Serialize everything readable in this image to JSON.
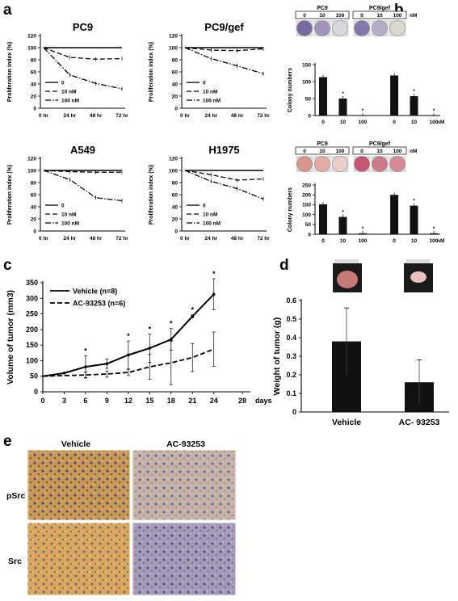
{
  "panel_labels": {
    "a": "a",
    "b": "b",
    "c": "c",
    "d": "d",
    "e": "e"
  },
  "chart_data": [
    {
      "id": "a1",
      "type": "line",
      "title": "PC9",
      "ylabel": "Proliferation index (%)",
      "categories": [
        "0 hr",
        "24 hr",
        "48 hr",
        "72 hr"
      ],
      "ylim": [
        0,
        120
      ],
      "yticks": [
        0,
        20,
        40,
        60,
        80,
        100,
        120
      ],
      "series": [
        {
          "name": "0",
          "values": [
            100,
            100,
            100,
            100
          ]
        },
        {
          "name": "10 nM",
          "values": [
            100,
            84,
            81,
            82
          ]
        },
        {
          "name": "100 nM",
          "values": [
            100,
            55,
            41,
            32
          ]
        }
      ]
    },
    {
      "id": "a2",
      "type": "line",
      "title": "PC9/gef",
      "ylabel": "Proliferation index (%)",
      "categories": [
        "0 hr",
        "24 hr",
        "48 hr",
        "72 hr"
      ],
      "ylim": [
        0,
        120
      ],
      "yticks": [
        0,
        20,
        40,
        60,
        80,
        100,
        120
      ],
      "series": [
        {
          "name": "0",
          "values": [
            100,
            100,
            100,
            100
          ]
        },
        {
          "name": "10 nM",
          "values": [
            100,
            96,
            95,
            98
          ]
        },
        {
          "name": "100 nM",
          "values": [
            100,
            82,
            70,
            57
          ]
        }
      ]
    },
    {
      "id": "a3",
      "type": "line",
      "title": "A549",
      "ylabel": "Proliferation index (%)",
      "categories": [
        "0 hr",
        "24 hr",
        "48 hr",
        "72 hr"
      ],
      "ylim": [
        0,
        120
      ],
      "yticks": [
        0,
        20,
        40,
        60,
        80,
        100,
        120
      ],
      "series": [
        {
          "name": "0",
          "values": [
            100,
            100,
            100,
            100
          ]
        },
        {
          "name": "10 nM",
          "values": [
            100,
            98,
            97,
            97
          ]
        },
        {
          "name": "100 nM",
          "values": [
            100,
            85,
            55,
            50
          ]
        }
      ]
    },
    {
      "id": "a4",
      "type": "line",
      "title": "H1975",
      "ylabel": "Proliferation index (%)",
      "categories": [
        "0 hr",
        "24 hr",
        "48 hr",
        "72 hr"
      ],
      "ylim": [
        0,
        120
      ],
      "yticks": [
        0,
        20,
        40,
        60,
        80,
        100,
        120
      ],
      "series": [
        {
          "name": "0",
          "values": [
            100,
            100,
            100,
            100
          ]
        },
        {
          "name": "10 nM",
          "values": [
            100,
            93,
            84,
            86
          ]
        },
        {
          "name": "100 nM",
          "values": [
            100,
            82,
            70,
            53
          ]
        }
      ]
    },
    {
      "id": "b1",
      "type": "bar",
      "ylabel": "Colony numbers",
      "categories": [
        "0",
        "10",
        "100",
        "0",
        "10",
        "100"
      ],
      "unit": "nM",
      "groups": [
        "PC9",
        "PC9/gef"
      ],
      "values": [
        113,
        50,
        0,
        118,
        57,
        0
      ],
      "ylim": [
        0,
        150
      ],
      "yticks": [
        0,
        50,
        100,
        150
      ],
      "stars": [
        false,
        true,
        true,
        false,
        true,
        true
      ]
    },
    {
      "id": "b2",
      "type": "bar",
      "ylabel": "Colony numbers",
      "categories": [
        "0",
        "10",
        "100",
        "0",
        "10",
        "100"
      ],
      "unit": "nM",
      "groups": [
        "PC9",
        "PC9/gef"
      ],
      "values": [
        152,
        88,
        5,
        200,
        145,
        5
      ],
      "ylim": [
        0,
        250
      ],
      "yticks": [
        0,
        50,
        100,
        150,
        200,
        250
      ],
      "stars": [
        false,
        true,
        true,
        false,
        true,
        true
      ]
    },
    {
      "id": "c",
      "type": "line",
      "ylabel": "Volume of tumor (mm3)",
      "xlabel": "days",
      "x": [
        0,
        3,
        6,
        9,
        12,
        15,
        18,
        21,
        24
      ],
      "xticks": [
        0,
        3,
        6,
        9,
        12,
        15,
        18,
        21,
        24,
        28
      ],
      "ylim": [
        0,
        350
      ],
      "yticks": [
        0,
        50,
        100,
        150,
        200,
        250,
        300,
        350
      ],
      "series": [
        {
          "name": "Vehicle  (n=8)",
          "values": [
            50,
            60,
            80,
            90,
            118,
            140,
            168,
            242,
            313
          ]
        },
        {
          "name": "AC-93253  (n=6)",
          "values": [
            50,
            52,
            54,
            57,
            62,
            80,
            93,
            110,
            137
          ]
        }
      ],
      "stars_at": [
        6,
        12,
        15,
        18,
        21,
        24
      ]
    },
    {
      "id": "d",
      "type": "bar",
      "ylabel": "Weight of tumor (g)",
      "categories": [
        "Vehicle",
        "AC- 93253"
      ],
      "values": [
        0.38,
        0.16
      ],
      "errors": [
        0.18,
        0.12
      ],
      "ylim": [
        0,
        0.6
      ],
      "yticks": [
        0,
        0.1,
        0.2,
        0.3,
        0.4,
        0.5,
        0.6
      ]
    }
  ],
  "panel_b": {
    "groups": [
      "PC9",
      "PC9/gef"
    ],
    "doses": [
      "0",
      "10",
      "100"
    ],
    "unit": "nM",
    "star": "*"
  },
  "panel_e": {
    "cols": [
      "Vehicle",
      "AC-93253"
    ],
    "rows": [
      "pSrc",
      "Src"
    ]
  }
}
